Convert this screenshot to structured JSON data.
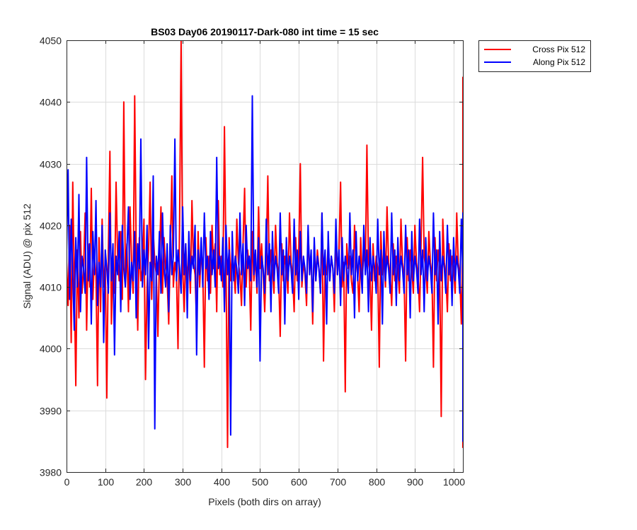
{
  "chart_data": {
    "type": "line",
    "title": "BS03 Day06 20190117-Dark-080 int time = 15 sec",
    "xlabel": "Pixels (both dirs on array)",
    "ylabel": "Signal (ADU) @ pix 512",
    "xlim": [
      0,
      1024
    ],
    "ylim": [
      3980,
      4050
    ],
    "xticks": [
      0,
      100,
      200,
      300,
      400,
      500,
      600,
      700,
      800,
      900,
      1000
    ],
    "yticks": [
      3980,
      3990,
      4000,
      4010,
      4020,
      4030,
      4040,
      4050
    ],
    "grid": true,
    "legend_position": "outside-top-right",
    "series": [
      {
        "name": "Cross Pix 512",
        "color": "#ff0000",
        "sample_step": 4,
        "values": [
          4014,
          4007,
          4020,
          4001,
          4027,
          4011,
          3994,
          4016,
          4005,
          4019,
          4009,
          4013,
          4022,
          4003,
          4017,
          4010,
          4026,
          4008,
          4015,
          4012,
          3994,
          4018,
          4006,
          4021,
          4010,
          4014,
          3992,
          4016,
          4032,
          4004,
          4013,
          4009,
          4027,
          4015,
          4011,
          4019,
          4008,
          4040,
          4012,
          4017,
          4006,
          4023,
          4014,
          4009,
          4041,
          4016,
          4003,
          4018,
          4011,
          4013,
          4021,
          3995,
          4010,
          4016,
          4027,
          4008,
          4019,
          4014,
          4012,
          4002,
          4015,
          4023,
          4009,
          4018,
          4013,
          4011,
          4004,
          4016,
          4028,
          4010,
          4014,
          4012,
          4000,
          4020,
          4050,
          4013,
          4006,
          4017,
          4011,
          4015,
          4009,
          4024,
          4014,
          4012,
          4004,
          4019,
          4010,
          4016,
          4013,
          3997,
          4018,
          4011,
          4015,
          4009,
          4020,
          4013,
          4017,
          4006,
          4024,
          4012,
          4015,
          4010,
          4036,
          4014,
          3984,
          4018,
          4011,
          4016,
          4013,
          4009,
          4021,
          4014,
          4012,
          4007,
          4017,
          4026,
          4010,
          4016,
          4013,
          4003,
          4019,
          4011,
          4015,
          4009,
          4023,
          4013,
          4017,
          4012,
          4006,
          4015,
          4028,
          4011,
          4016,
          4013,
          4009,
          4020,
          4014,
          4012,
          4002,
          4017,
          4011,
          4015,
          4013,
          4009,
          4022,
          4014,
          4012,
          4006,
          4018,
          4011,
          4016,
          4030,
          4010,
          4014,
          4012,
          4007,
          4019,
          4013,
          4015,
          4004,
          4017,
          4011,
          4016,
          4013,
          4009,
          4022,
          3998,
          4014,
          4012,
          4017,
          4011,
          4015,
          4013,
          4006,
          4018,
          4012,
          4016,
          4027,
          4010,
          4014,
          3993,
          4017,
          4013,
          4015,
          4011,
          4009,
          4020,
          4014,
          4012,
          4006,
          4018,
          4011,
          4016,
          4013,
          4033,
          4014,
          4012,
          4003,
          4017,
          4011,
          4015,
          4013,
          3997,
          4019,
          4012,
          4016,
          4010,
          4023,
          4014,
          4012,
          4007,
          4017,
          4011,
          4015,
          4013,
          4009,
          4021,
          4014,
          4012,
          3998,
          4018,
          4011,
          4016,
          4013,
          4009,
          4020,
          4014,
          4012,
          4006,
          4017,
          4031,
          4015,
          4013,
          4009,
          4019,
          4014,
          4012,
          3997,
          4018,
          4011,
          4016,
          4013,
          3989,
          4021,
          4014,
          4012,
          4006,
          4017,
          4011,
          4015,
          4013,
          4009,
          4022,
          4014,
          4012,
          4004,
          4018,
          4011,
          4016,
          4013,
          4009,
          4020,
          4014,
          4012,
          3984,
          4017,
          4011,
          4015,
          4013,
          4009,
          4019,
          4014,
          4012,
          4006,
          4018,
          4011,
          4028,
          4013,
          4009,
          4021,
          4014,
          4012,
          4004,
          4017,
          4011,
          4015,
          4013,
          4009,
          4020,
          4014,
          3993,
          4006,
          4018,
          4011,
          4016,
          4013,
          4009,
          4021,
          4044,
          4012,
          3996,
          4017,
          4011,
          4015,
          4013,
          4009,
          4022,
          4014,
          4012,
          4006,
          4018,
          4011,
          3991,
          4013,
          4009,
          4020,
          4014,
          4012,
          4004,
          4017,
          4011,
          4015,
          4013,
          3996,
          4025,
          4014,
          4012,
          4006,
          4018,
          4033,
          4016,
          4013,
          4009,
          4020
        ]
      },
      {
        "name": "Along Pix 512",
        "color": "#0000ff",
        "sample_step": 4,
        "values": [
          4016,
          4029,
          4008,
          4021,
          4012,
          4003,
          4018,
          4010,
          4025,
          4006,
          4015,
          4013,
          4009,
          4031,
          4011,
          4017,
          4004,
          4019,
          4012,
          4024,
          4007,
          4014,
          4010,
          4020,
          4001,
          4016,
          4013,
          4009,
          4022,
          4011,
          4017,
          3999,
          4015,
          4012,
          4019,
          4006,
          4020,
          4013,
          4010,
          4016,
          4023,
          4008,
          4014,
          4011,
          4019,
          4005,
          4017,
          4013,
          4034,
          4010,
          4016,
          4012,
          4020,
          4000,
          4014,
          4011,
          4028,
          3987,
          4015,
          4012,
          4019,
          4009,
          4022,
          4013,
          4010,
          4017,
          4006,
          4020,
          4012,
          4015,
          4034,
          4011,
          4016,
          4013,
          4009,
          4023,
          4012,
          4017,
          4005,
          4019,
          4011,
          4015,
          4013,
          4020,
          3999,
          4016,
          4012,
          4018,
          4010,
          4022,
          4013,
          4015,
          4008,
          4019,
          4012,
          4016,
          4010,
          4031,
          4013,
          4015,
          4011,
          4018,
          4006,
          4020,
          4012,
          4016,
          3986,
          4019,
          4011,
          4015,
          4013,
          4009,
          4022,
          4012,
          4017,
          4007,
          4020,
          4013,
          4015,
          4011,
          4041,
          4012,
          4016,
          4010,
          4018,
          3998,
          4015,
          4013,
          4009,
          4021,
          4012,
          4017,
          4006,
          4019,
          4011,
          4015,
          4013,
          4009,
          4022,
          4012,
          4016,
          4004,
          4018,
          4011,
          4015,
          4013,
          4009,
          4021,
          4012,
          4016,
          4008,
          4019,
          4011,
          4015,
          4013,
          4009,
          4020,
          4012,
          4016,
          4006,
          4018,
          4011,
          4015,
          4013,
          4009,
          4022,
          4012,
          4016,
          4004,
          4019,
          4011,
          4015,
          4013,
          4009,
          4021,
          4012,
          4016,
          4007,
          4018,
          4011,
          4015,
          4013,
          4009,
          4022,
          4012,
          4016,
          4005,
          4019,
          4011,
          4015,
          4013,
          4009,
          4020,
          4012,
          4016,
          4006,
          4018,
          4011,
          4015,
          4013,
          4009,
          4021,
          4012,
          4016,
          4004,
          4019,
          4011,
          4015,
          4013,
          4009,
          4022,
          4012,
          4016,
          4007,
          4018,
          4011,
          4015,
          4013,
          4009,
          4020,
          4012,
          4016,
          4005,
          4019,
          4011,
          4015,
          4013,
          4009,
          4021,
          4012,
          4016,
          4006,
          4018,
          4011,
          4015,
          4013,
          4009,
          4022,
          4012,
          4016,
          4004,
          4019,
          4011,
          4015,
          4013,
          4009,
          4020,
          4012,
          4016,
          4007,
          4018,
          4011,
          4015,
          4013,
          4009,
          4021,
          4012,
          4016,
          4005,
          4019,
          4011,
          4015,
          4013,
          4009,
          4022,
          4012,
          4016,
          4006,
          4018,
          4011,
          4015,
          4013,
          4009,
          4020,
          4012,
          4016,
          4004,
          4019,
          4011,
          4015,
          4013,
          4009,
          4021,
          4012,
          4016,
          4007,
          4018,
          4011,
          4015,
          4013,
          4009,
          4022,
          4012,
          4016,
          4005,
          4019,
          4011,
          4015,
          4013,
          4009,
          4020,
          4012,
          4016,
          4006,
          4018,
          4011,
          4015,
          4013,
          4009,
          4021,
          4012,
          4016,
          4004,
          4019,
          4011,
          4015,
          4013,
          4009,
          4022,
          4012,
          4016,
          3985,
          4018,
          4011,
          4015,
          4013,
          4009,
          4020,
          4012,
          4016,
          4005,
          4019,
          4011,
          4015,
          4013,
          4009,
          4021,
          4012,
          4016,
          4006,
          4018,
          4011,
          4015,
          4013,
          4009,
          4022,
          4012,
          4016,
          4004,
          4019,
          4011,
          4015,
          4013,
          4009,
          4020,
          4012,
          4016,
          3997,
          4018
        ]
      }
    ]
  }
}
